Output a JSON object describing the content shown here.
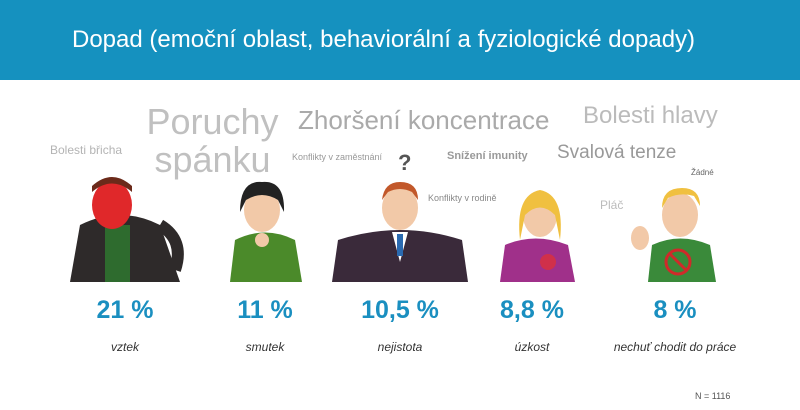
{
  "header": {
    "title": "Dopad (emoční oblast, behaviorální a fyziologické dopady)"
  },
  "word_cloud": {
    "words": [
      "Bolesti břicha",
      "Poruchy spánku",
      "Zhoršení koncentrace",
      "Bolesti hlavy",
      "Konflikty v zaměstnání",
      "Snížení imunity",
      "Svalová tenze",
      "Konflikty v rodině",
      "Žádné",
      "Pláč"
    ]
  },
  "stats": [
    {
      "value": "21 %",
      "label": "vztek"
    },
    {
      "value": "11 %",
      "label": "smutek"
    },
    {
      "value": "10,5 %",
      "label": "nejistota"
    },
    {
      "value": "8,8 %",
      "label": "úzkost"
    },
    {
      "value": "8 %",
      "label": "nechuť chodit do práce"
    }
  ],
  "note": "N = 1116"
}
